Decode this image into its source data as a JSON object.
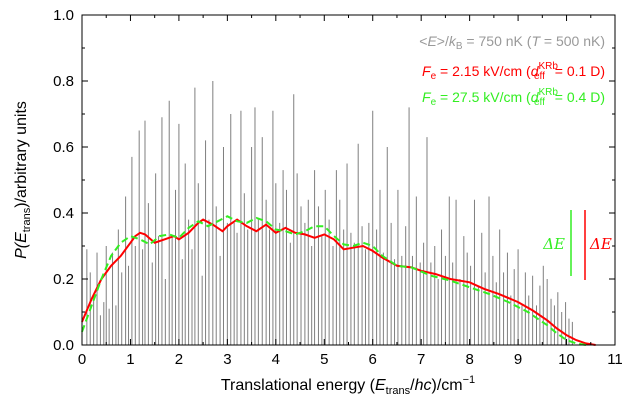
{
  "chart_data": {
    "type": "line",
    "xlabel": {
      "prefix": "Translational energy (",
      "var": "E",
      "sub": "trans",
      "slash": "/",
      "hc": "hc",
      "suffix": ")/cm",
      "sup": "−1"
    },
    "ylabel": {
      "prefix": "P(",
      "var": "E",
      "sub": "trans",
      "suffix": ")/arbitrary units"
    },
    "xlim": [
      0,
      11
    ],
    "ylim": [
      0,
      1.0
    ],
    "xticks": [
      "0",
      "1",
      "2",
      "3",
      "4",
      "5",
      "6",
      "7",
      "8",
      "9",
      "10",
      "11"
    ],
    "yticks": [
      "0.0",
      "0.2",
      "0.4",
      "0.6",
      "0.8",
      "1.0"
    ],
    "legend": {
      "placement": "top-right",
      "header": {
        "lt": "<",
        "E": "E",
        "gt": ">/",
        "k": "k",
        "kb_sub": "B",
        "val": " = 750 nK (",
        "T": "T",
        "tval": " = 500 nK)"
      },
      "red": {
        "F": "F",
        "F_sub": "e",
        "val": " = 2.15 kV/cm (",
        "d": "d",
        "d_sup": "KRb",
        "d_sub": "eff",
        "dval": " = 0.1 D)"
      },
      "green": {
        "F": "F",
        "F_sub": "e",
        "val": " = 27.5 kV/cm (",
        "d": "d",
        "d_sup": "KRb",
        "d_sub": "eff",
        "dval": " = 0.4 D)"
      }
    },
    "annotations": {
      "dE_green": "ΔE",
      "dE_red": "ΔE"
    },
    "colors": {
      "grey": "#7f7f7f",
      "red": "#ff0000",
      "green": "#33ee22",
      "header": "#999999"
    },
    "series": [
      {
        "color": "red",
        "x": [
          0,
          0.2,
          0.4,
          0.6,
          0.8,
          1.0,
          1.1,
          1.2,
          1.3,
          1.5,
          1.7,
          1.9,
          2.0,
          2.2,
          2.4,
          2.5,
          2.7,
          2.9,
          3.0,
          3.2,
          3.4,
          3.6,
          3.8,
          4.0,
          4.2,
          4.4,
          4.6,
          4.8,
          5.0,
          5.2,
          5.4,
          5.6,
          5.8,
          6.0,
          6.2,
          6.5,
          6.8,
          7.0,
          7.3,
          7.6,
          8.0,
          8.3,
          8.6,
          9.0,
          9.3,
          9.6,
          9.8,
          10.0,
          10.2,
          10.4,
          10.6
        ],
        "y": [
          0.07,
          0.14,
          0.2,
          0.24,
          0.27,
          0.31,
          0.33,
          0.34,
          0.335,
          0.31,
          0.32,
          0.33,
          0.32,
          0.34,
          0.37,
          0.38,
          0.365,
          0.345,
          0.36,
          0.38,
          0.36,
          0.345,
          0.365,
          0.34,
          0.355,
          0.34,
          0.335,
          0.325,
          0.335,
          0.32,
          0.29,
          0.295,
          0.3,
          0.285,
          0.265,
          0.24,
          0.235,
          0.225,
          0.215,
          0.2,
          0.19,
          0.17,
          0.155,
          0.13,
          0.105,
          0.075,
          0.05,
          0.03,
          0.015,
          0.005,
          0.0
        ]
      },
      {
        "color": "green",
        "x": [
          0,
          0.2,
          0.4,
          0.6,
          0.8,
          1.0,
          1.2,
          1.4,
          1.6,
          1.8,
          2.0,
          2.2,
          2.4,
          2.6,
          2.8,
          3.0,
          3.2,
          3.4,
          3.6,
          3.8,
          4.0,
          4.2,
          4.4,
          4.6,
          4.8,
          5.0,
          5.2,
          5.4,
          5.6,
          5.8,
          6.0,
          6.2,
          6.5,
          6.8,
          7.2,
          7.6,
          8.0,
          8.4,
          8.8,
          9.2,
          9.6,
          9.8,
          10.0,
          10.2,
          10.4
        ],
        "y": [
          0.04,
          0.12,
          0.2,
          0.27,
          0.31,
          0.33,
          0.32,
          0.305,
          0.33,
          0.335,
          0.325,
          0.355,
          0.375,
          0.36,
          0.375,
          0.39,
          0.375,
          0.37,
          0.385,
          0.375,
          0.35,
          0.345,
          0.335,
          0.345,
          0.36,
          0.36,
          0.33,
          0.305,
          0.3,
          0.31,
          0.3,
          0.27,
          0.24,
          0.235,
          0.21,
          0.195,
          0.175,
          0.155,
          0.13,
          0.1,
          0.06,
          0.035,
          0.015,
          0.005,
          0.0
        ]
      }
    ],
    "stick_spectrum": {
      "color": "grey",
      "x": [
        0.1,
        0.17,
        0.24,
        0.31,
        0.38,
        0.45,
        0.5,
        0.56,
        0.63,
        0.7,
        0.75,
        0.82,
        0.9,
        0.96,
        1.03,
        1.1,
        1.18,
        1.25,
        1.3,
        1.37,
        1.45,
        1.52,
        1.58,
        1.65,
        1.72,
        1.8,
        1.86,
        1.93,
        2.0,
        2.07,
        2.13,
        2.2,
        2.27,
        2.33,
        2.4,
        2.48,
        2.55,
        2.62,
        2.7,
        2.77,
        2.85,
        2.92,
        3.0,
        3.07,
        3.14,
        3.2,
        3.28,
        3.35,
        3.42,
        3.5,
        3.57,
        3.64,
        3.72,
        3.8,
        3.87,
        3.94,
        4.0,
        4.08,
        4.15,
        4.22,
        4.3,
        4.37,
        4.44,
        4.52,
        4.6,
        4.67,
        4.74,
        4.8,
        4.88,
        4.95,
        5.02,
        5.1,
        5.18,
        5.25,
        5.32,
        5.4,
        5.47,
        5.55,
        5.62,
        5.7,
        5.78,
        5.85,
        5.92,
        6.0,
        6.08,
        6.15,
        6.22,
        6.3,
        6.38,
        6.45,
        6.52,
        6.6,
        6.68,
        6.75,
        6.82,
        6.9,
        6.98,
        7.05,
        7.12,
        7.2,
        7.28,
        7.35,
        7.42,
        7.5,
        7.58,
        7.65,
        7.72,
        7.8,
        7.88,
        7.95,
        8.02,
        8.1,
        8.18,
        8.25,
        8.32,
        8.4,
        8.48,
        8.55,
        8.62,
        8.7,
        8.78,
        8.85,
        8.92,
        9.0,
        9.08,
        9.15,
        9.22,
        9.3,
        9.38,
        9.45,
        9.52,
        9.6,
        9.68,
        9.75,
        9.82,
        9.9,
        9.98,
        10.05,
        10.12
      ],
      "y": [
        0.29,
        0.22,
        0.15,
        0.28,
        0.09,
        0.13,
        0.3,
        0.11,
        0.28,
        0.12,
        0.35,
        0.22,
        0.45,
        0.24,
        0.57,
        0.3,
        0.65,
        0.29,
        0.68,
        0.43,
        0.25,
        0.52,
        0.33,
        0.69,
        0.2,
        0.74,
        0.33,
        0.47,
        0.67,
        0.26,
        0.55,
        0.38,
        0.29,
        0.78,
        0.49,
        0.21,
        0.62,
        0.38,
        0.8,
        0.42,
        0.27,
        0.6,
        0.37,
        0.7,
        0.37,
        0.34,
        0.71,
        0.46,
        0.35,
        0.6,
        0.72,
        0.38,
        0.63,
        0.44,
        0.35,
        0.71,
        0.49,
        0.37,
        0.53,
        0.47,
        0.31,
        0.76,
        0.52,
        0.42,
        0.37,
        0.44,
        0.3,
        0.53,
        0.42,
        0.33,
        0.47,
        0.38,
        0.3,
        0.53,
        0.44,
        0.35,
        0.55,
        0.34,
        0.31,
        0.61,
        0.36,
        0.29,
        0.37,
        0.71,
        0.35,
        0.47,
        0.28,
        0.6,
        0.37,
        0.26,
        0.47,
        0.27,
        0.36,
        0.72,
        0.27,
        0.45,
        0.25,
        0.31,
        0.63,
        0.25,
        0.3,
        0.2,
        0.35,
        0.27,
        0.45,
        0.25,
        0.44,
        0.2,
        0.33,
        0.28,
        0.24,
        0.44,
        0.18,
        0.34,
        0.22,
        0.45,
        0.27,
        0.19,
        0.35,
        0.22,
        0.28,
        0.15,
        0.23,
        0.29,
        0.12,
        0.22,
        0.15,
        0.21,
        0.12,
        0.18,
        0.24,
        0.2,
        0.14,
        0.12,
        0.16,
        0.1,
        0.13,
        0.08,
        0.07
      ]
    }
  }
}
